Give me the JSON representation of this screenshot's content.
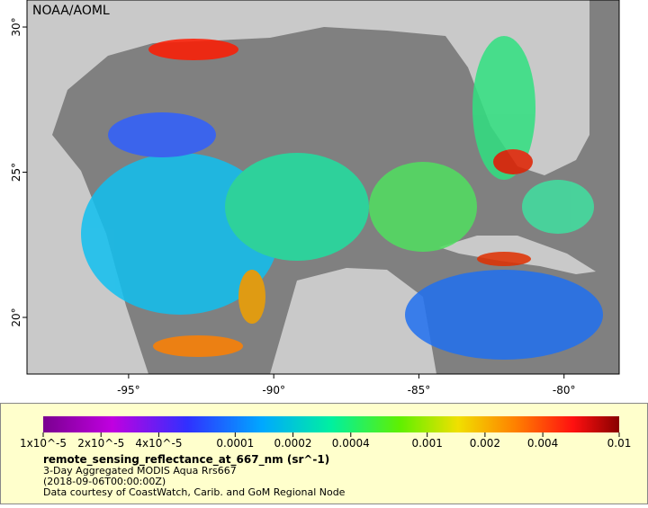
{
  "map": {
    "title": "NOAA/AOML",
    "xlim": [
      -98.5,
      -78.1
    ],
    "ylim": [
      18.05,
      30.93
    ],
    "xticks": [
      {
        "value": -95,
        "label": "-95°"
      },
      {
        "value": -90,
        "label": "-90°"
      },
      {
        "value": -85,
        "label": "-85°"
      },
      {
        "value": -80,
        "label": "-80°"
      }
    ],
    "yticks": [
      {
        "value": 20,
        "label": "20°"
      },
      {
        "value": 25,
        "label": "25°"
      },
      {
        "value": 30,
        "label": "30°"
      }
    ]
  },
  "colorbar": {
    "scale": "log",
    "lim": [
      1e-05,
      0.01
    ],
    "ticks": [
      {
        "value": 1e-05,
        "label": "1x10^-5"
      },
      {
        "value": 2e-05,
        "label": "2x10^-5"
      },
      {
        "value": 4e-05,
        "label": "4x10^-5"
      },
      0.0001,
      0.0002,
      0.0004,
      0.001,
      0.002,
      0.004,
      0.01
    ]
  },
  "caption": {
    "variable": "remote_sensing_reflectance_at_667_nm (sr^-1)",
    "product": "3-Day Aggregated MODIS Aqua Rrs667",
    "time": "(2018-09-06T00:00:00Z)",
    "credit": "Data courtesy of CoastWatch, Carib. and GoM Regional Node"
  }
}
